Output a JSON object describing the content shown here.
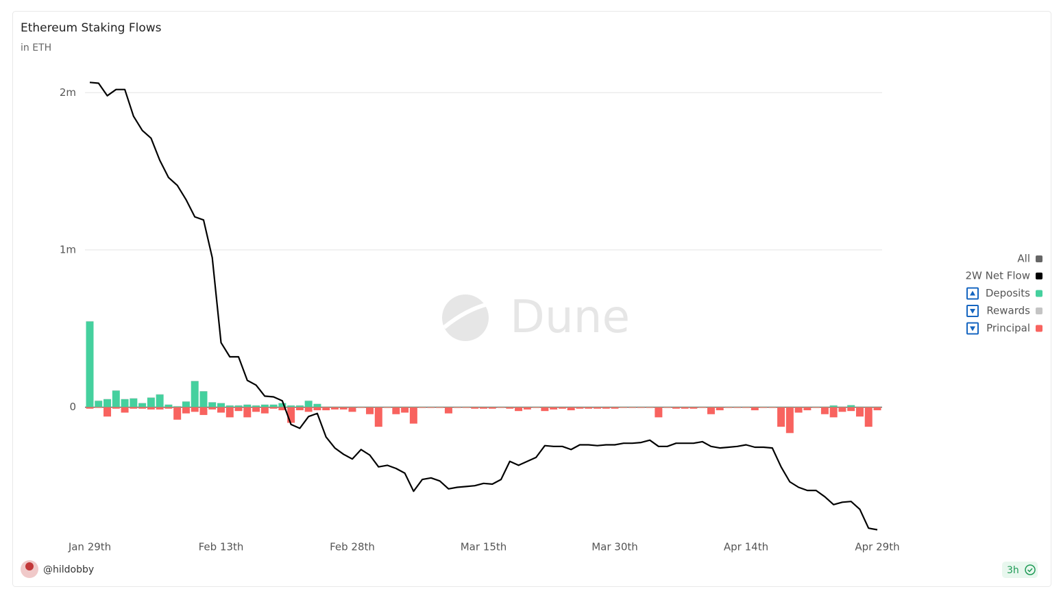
{
  "chart_data": {
    "type": "bar",
    "title": "Ethereum Staking Flows",
    "subtitle": "in ETH",
    "categories": [
      "Jan 29th",
      null,
      null,
      null,
      null,
      null,
      null,
      null,
      null,
      null,
      null,
      null,
      null,
      null,
      null,
      "Feb 13th",
      null,
      null,
      null,
      null,
      null,
      null,
      null,
      null,
      null,
      null,
      null,
      null,
      null,
      null,
      "Feb 28th",
      null,
      null,
      null,
      null,
      null,
      null,
      null,
      null,
      null,
      null,
      null,
      null,
      null,
      null,
      "Mar 15th",
      null,
      null,
      null,
      null,
      null,
      null,
      null,
      null,
      null,
      null,
      null,
      null,
      null,
      null,
      "Mar 30th",
      null,
      null,
      null,
      null,
      null,
      null,
      null,
      null,
      null,
      null,
      null,
      null,
      null,
      null,
      "Apr 14th",
      null,
      null,
      null,
      null,
      null,
      null,
      null,
      null,
      null,
      null,
      null,
      null,
      null,
      null,
      "Apr 29th"
    ],
    "ylim": [
      -830000,
      2110000
    ],
    "yticks": [
      {
        "value": 0,
        "label": "0"
      },
      {
        "value": 1000000,
        "label": "1m"
      },
      {
        "value": 2000000,
        "label": "2m"
      }
    ],
    "grid": true,
    "legend": {
      "position": "right",
      "all_label": "All",
      "all_color": "#666666"
    },
    "series": [
      {
        "name": "2W Net Flow",
        "type": "line",
        "color": "#000000",
        "values": [
          2065000,
          2060000,
          1980000,
          2020000,
          2020000,
          1850000,
          1760000,
          1710000,
          1570000,
          1460000,
          1410000,
          1320000,
          1210000,
          1190000,
          950000,
          410000,
          320000,
          320000,
          170000,
          140000,
          70000,
          65000,
          40000,
          -110000,
          -135000,
          -60000,
          -40000,
          -190000,
          -260000,
          -300000,
          -330000,
          -270000,
          -305000,
          -380000,
          -370000,
          -390000,
          -420000,
          -535000,
          -460000,
          -450000,
          -470000,
          -520000,
          -510000,
          -505000,
          -500000,
          -485000,
          -490000,
          -460000,
          -345000,
          -370000,
          -345000,
          -320000,
          -245000,
          -250000,
          -250000,
          -270000,
          -240000,
          -240000,
          -245000,
          -240000,
          -240000,
          -230000,
          -230000,
          -225000,
          -210000,
          -250000,
          -250000,
          -230000,
          -230000,
          -230000,
          -220000,
          -250000,
          -260000,
          -255000,
          -250000,
          -240000,
          -255000,
          -255000,
          -260000,
          -380000,
          -475000,
          -510000,
          -530000,
          -530000,
          -570000,
          -620000,
          -605000,
          -600000,
          -650000,
          -770000,
          -780000
        ]
      },
      {
        "name": "Deposits",
        "type": "bar",
        "color": "#45d09e",
        "values": [
          545000,
          40000,
          50000,
          105000,
          50000,
          55000,
          25000,
          60000,
          80000,
          15000,
          5000,
          35000,
          165000,
          100000,
          30000,
          25000,
          10000,
          10000,
          15000,
          10000,
          15000,
          15000,
          25000,
          10000,
          10000,
          40000,
          20000,
          3000,
          3000,
          3000,
          3000,
          3000,
          3000,
          3000,
          3000,
          3000,
          3000,
          3000,
          3000,
          3000,
          3000,
          3000,
          3000,
          3000,
          3000,
          3000,
          3000,
          3000,
          3000,
          3000,
          3000,
          3000,
          3000,
          3000,
          3000,
          3000,
          3000,
          3000,
          3000,
          3000,
          3000,
          3000,
          3000,
          3000,
          3000,
          3000,
          3000,
          3000,
          3000,
          3000,
          3000,
          3000,
          3000,
          3000,
          3000,
          3000,
          3000,
          3000,
          3000,
          3000,
          3000,
          3000,
          3000,
          3000,
          3000,
          10000,
          3000,
          12000,
          3000,
          3000,
          3000
        ]
      },
      {
        "name": "Rewards",
        "type": "bar",
        "color": "#c4c4c4",
        "values": [
          2000,
          2000,
          2000,
          2000,
          2000,
          2000,
          2000,
          2000,
          2000,
          2000,
          2000,
          2000,
          2000,
          2000,
          2000,
          2000,
          2000,
          2000,
          2000,
          2000,
          2000,
          2000,
          2000,
          2000,
          2000,
          2000,
          2000,
          2000,
          2000,
          2000,
          2000,
          2000,
          2000,
          2000,
          2000,
          2000,
          2000,
          2000,
          2000,
          2000,
          2000,
          2000,
          2000,
          2000,
          2000,
          2000,
          2000,
          2000,
          2000,
          2000,
          2000,
          2000,
          2000,
          2000,
          2000,
          2000,
          2000,
          2000,
          2000,
          2000,
          2000,
          2000,
          2000,
          2000,
          2000,
          2000,
          2000,
          2000,
          2000,
          2000,
          2000,
          2000,
          2000,
          2000,
          2000,
          2000,
          2000,
          2000,
          2000,
          2000,
          2000,
          2000,
          2000,
          2000,
          2000,
          2000,
          2000,
          2000,
          2000,
          2000,
          2000
        ]
      },
      {
        "name": "Principal",
        "type": "bar",
        "color": "#f8635f",
        "values": [
          -10000,
          -5000,
          -60000,
          -10000,
          -35000,
          -10000,
          -10000,
          -15000,
          -15000,
          -10000,
          -80000,
          -40000,
          -30000,
          -50000,
          -15000,
          -35000,
          -65000,
          -25000,
          -65000,
          -30000,
          -40000,
          -10000,
          -20000,
          -100000,
          -20000,
          -30000,
          -20000,
          -20000,
          -15000,
          -15000,
          -30000,
          -5000,
          -45000,
          -125000,
          -5000,
          -45000,
          -35000,
          -105000,
          -5000,
          -5000,
          -5000,
          -40000,
          -5000,
          -5000,
          -10000,
          -10000,
          -10000,
          -5000,
          -10000,
          -25000,
          -15000,
          -5000,
          -25000,
          -15000,
          -10000,
          -20000,
          -10000,
          -10000,
          -10000,
          -10000,
          -10000,
          -5000,
          -5000,
          -5000,
          -5000,
          -65000,
          -5000,
          -10000,
          -10000,
          -10000,
          -5000,
          -45000,
          -20000,
          -5000,
          -5000,
          -5000,
          -20000,
          -5000,
          -5000,
          -125000,
          -165000,
          -35000,
          -20000,
          -5000,
          -45000,
          -65000,
          -30000,
          -25000,
          -60000,
          -125000,
          -20000
        ]
      }
    ]
  },
  "watermark": "Dune",
  "author": "@hildobby",
  "refresh": "3h"
}
